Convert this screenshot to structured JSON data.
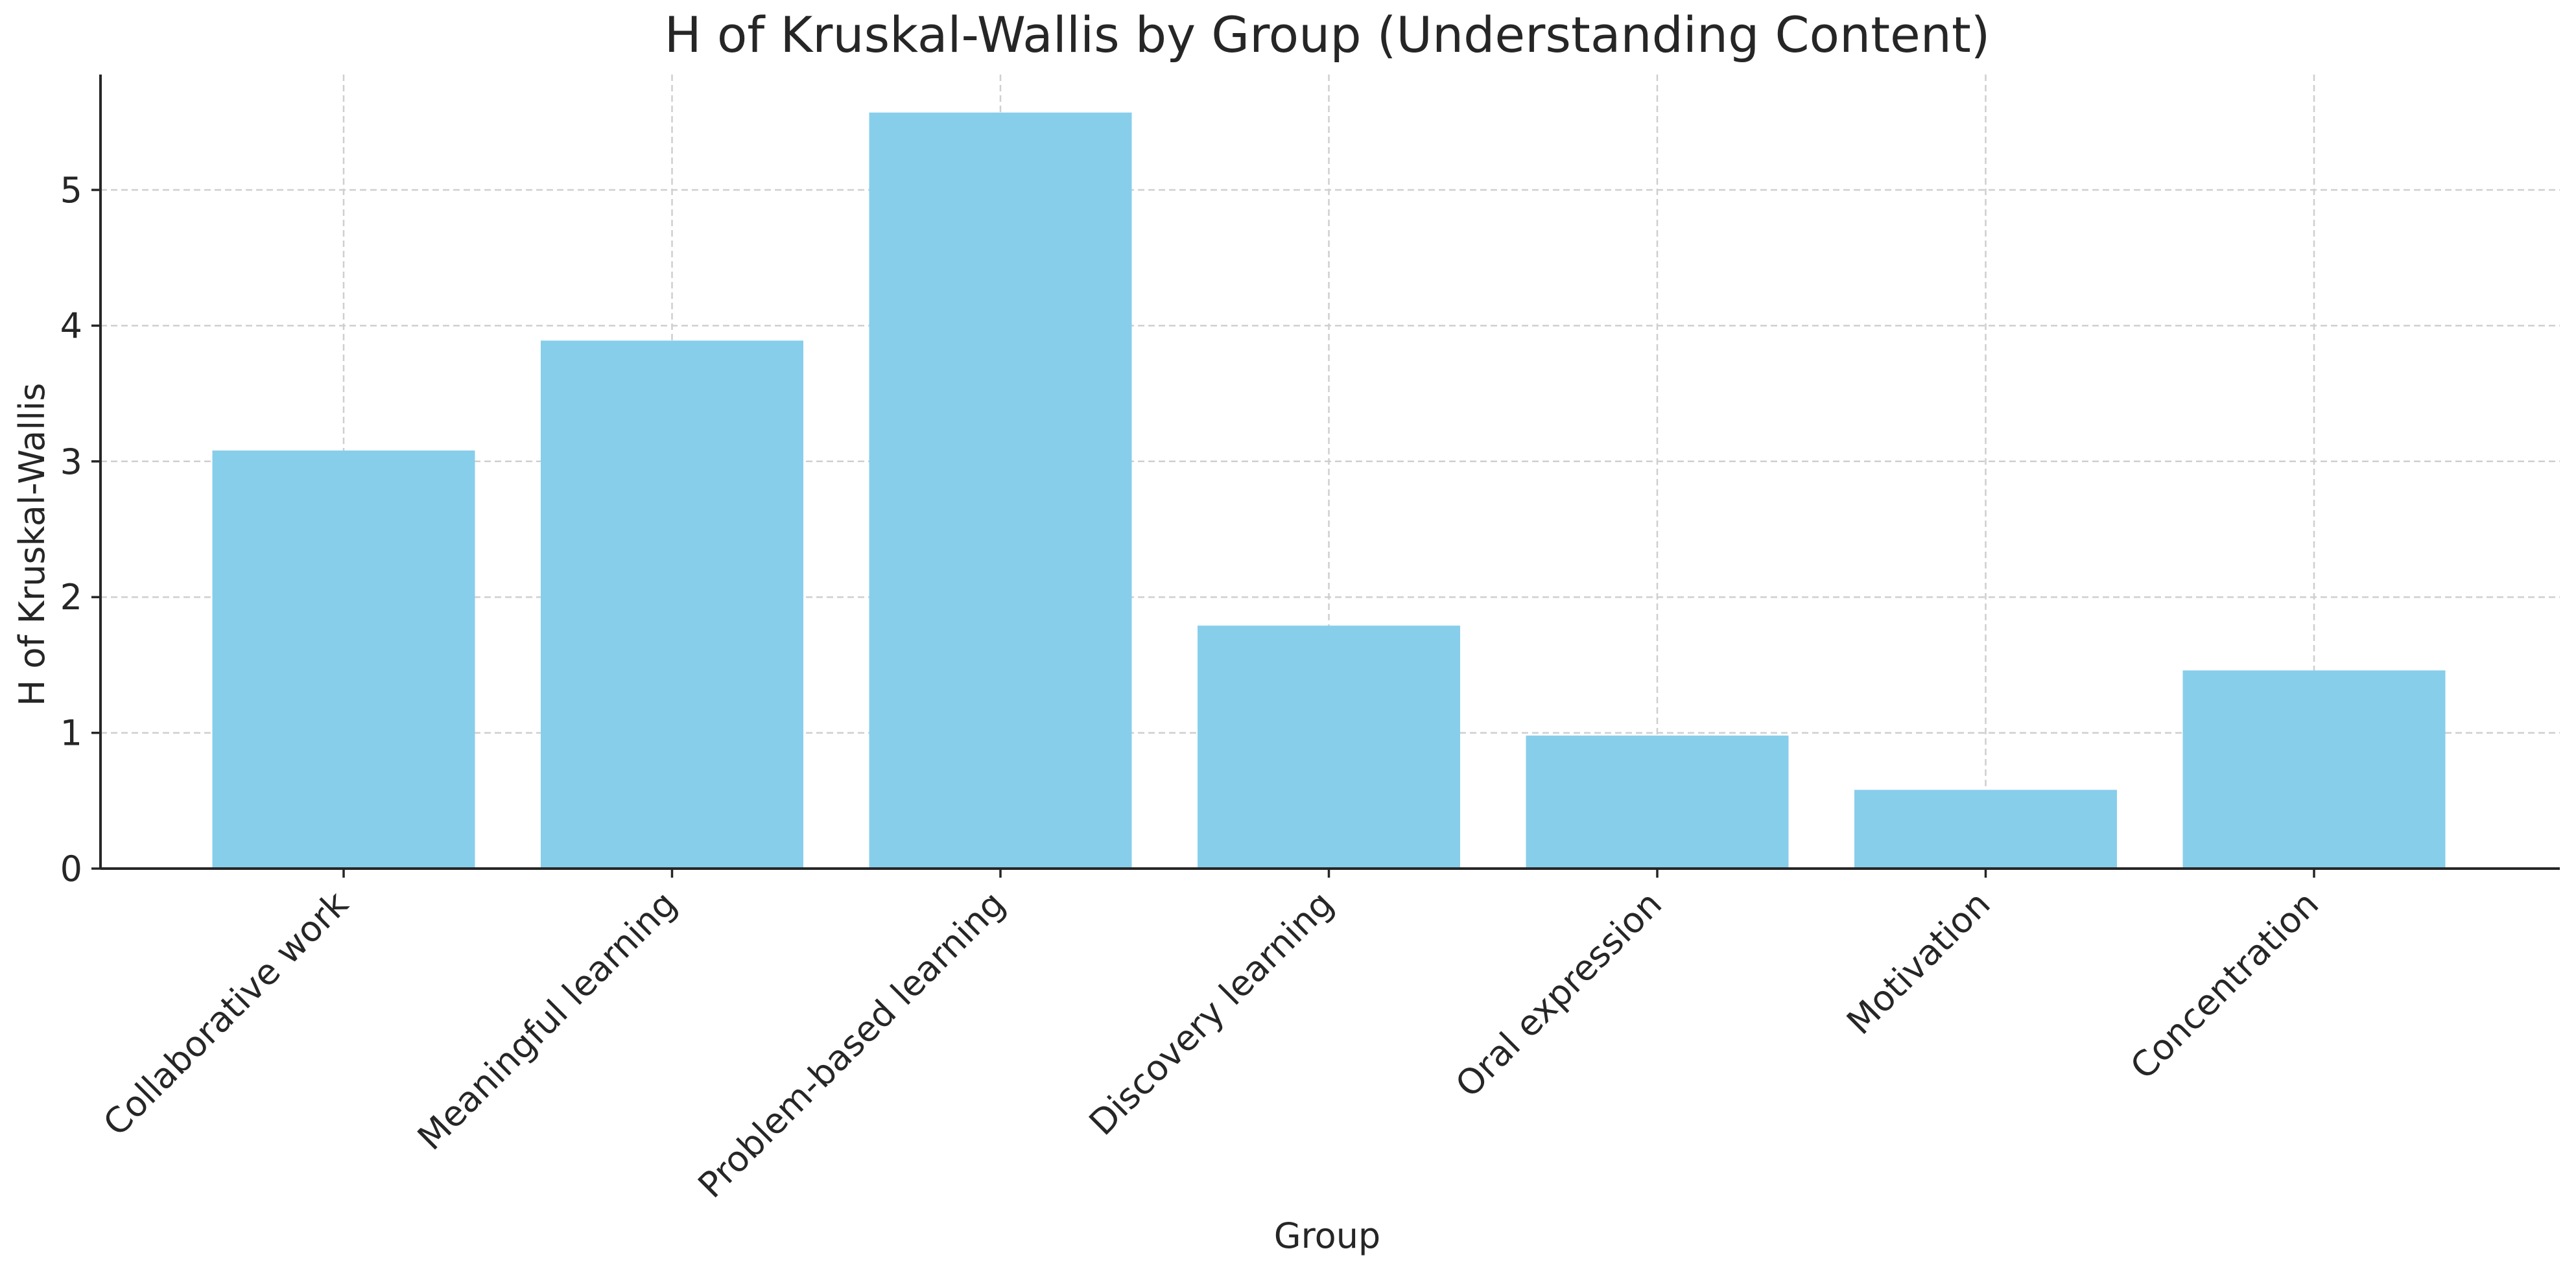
{
  "chart_data": {
    "type": "bar",
    "title": "H of Kruskal-Wallis by Group (Understanding Content)",
    "xlabel": "Group",
    "ylabel": "H of Kruskal-Wallis",
    "categories": [
      "Collaborative work",
      "Meaningful learning",
      "Problem-based learning",
      "Discovery learning",
      "Oral expression",
      "Motivation",
      "Concentration"
    ],
    "values": [
      3.08,
      3.89,
      5.57,
      1.79,
      0.98,
      0.58,
      1.46
    ],
    "ylim": [
      0,
      5.85
    ],
    "yticks": [
      0,
      1,
      2,
      3,
      4,
      5
    ],
    "grid": true,
    "bar_color": "#87ceeb",
    "axis_color": "#262626",
    "grid_color": "#cfcfcf"
  }
}
